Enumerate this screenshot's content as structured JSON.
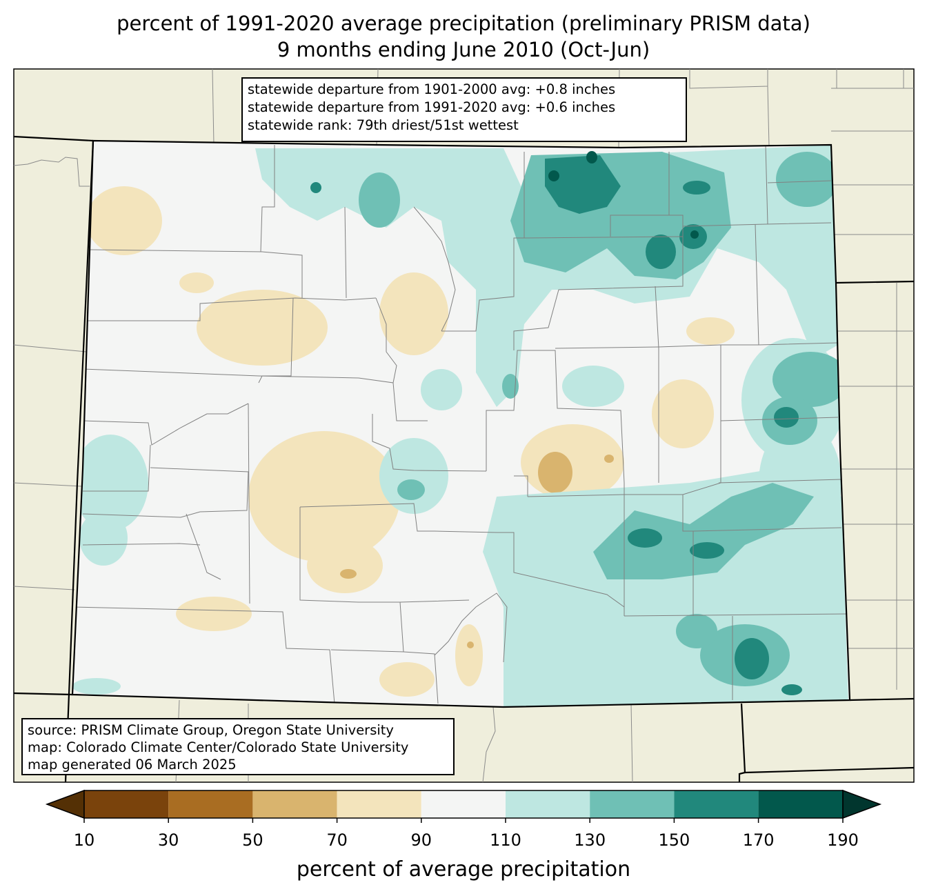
{
  "title": {
    "line1": "percent of 1991-2020 average precipitation (preliminary PRISM data)",
    "line2": "9 months ending June 2010 (Oct-Jun)"
  },
  "stats_box": {
    "line1": "statewide departure from 1901-2000 avg: +0.8 inches",
    "line2": "statewide departure from 1991-2020 avg: +0.6 inches",
    "line3": "statewide rank: 79th driest/51st wettest"
  },
  "source_box": {
    "line1": "source: PRISM Climate Group, Oregon State University",
    "line2": "map: Colorado Climate Center/Colorado State University",
    "line3": "map generated 06 March 2025"
  },
  "legend": {
    "title": "percent of average precipitation",
    "ticks": [
      "10",
      "30",
      "50",
      "70",
      "90",
      "110",
      "130",
      "150",
      "170",
      "190"
    ],
    "colors": [
      "#543005",
      "#7a430c",
      "#a96d22",
      "#d9b46e",
      "#f3e4bc",
      "#f4f5f4",
      "#bee7e1",
      "#6fc0b5",
      "#21887c",
      "#02584c",
      "#01362e"
    ]
  },
  "colors": {
    "background_land": "#efeedc",
    "state_border": "#000000",
    "county_border": "#7a7a7a"
  }
}
